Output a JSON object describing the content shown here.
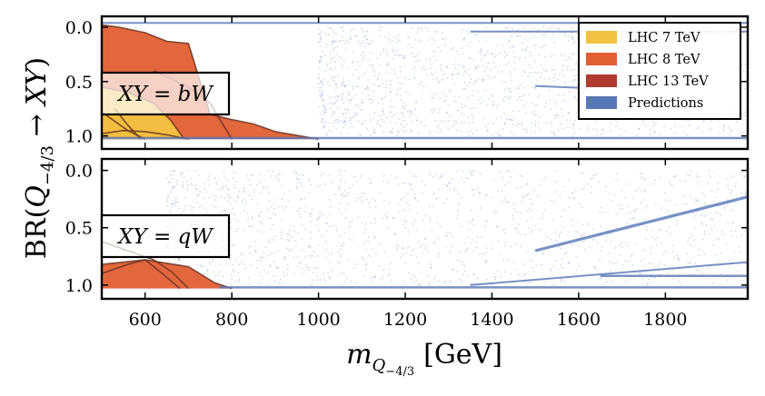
{
  "chart_data": {
    "type": "scatter",
    "ylabel": "BR(Q−₄⁄₃ → XY)",
    "ylabel_parts": {
      "prefix": "BR(",
      "Q": "Q",
      "sub": "−4/3",
      "arrow": " → ",
      "xy": "XY",
      "suffix": ")"
    },
    "xlabel_parts": {
      "m": "m",
      "sub_Q": "Q",
      "sub_sub": "−4/3",
      "unit": "[GeV]"
    },
    "xlim": [
      500,
      1990
    ],
    "ylim": [
      1.12,
      -0.1
    ],
    "x_ticks": [
      {
        "value": 600,
        "label": "600"
      },
      {
        "value": 800,
        "label": "800"
      },
      {
        "value": 1000,
        "label": "1000"
      },
      {
        "value": 1200,
        "label": "1200"
      },
      {
        "value": 1400,
        "label": "1400"
      },
      {
        "value": 1600,
        "label": "1600"
      },
      {
        "value": 1800,
        "label": "1800"
      }
    ],
    "y_ticks": [
      {
        "value": 0.0,
        "label": "0.0"
      },
      {
        "value": 0.5,
        "label": "0.5"
      },
      {
        "value": 1.0,
        "label": "1.0"
      }
    ],
    "legend": {
      "position": "top-right",
      "entries": [
        {
          "name": "LHC 7 TeV",
          "color": "#f2c240"
        },
        {
          "name": "LHC 8 TeV",
          "color": "#e15f33"
        },
        {
          "name": "LHC 13 TeV",
          "color": "#ae3b2e"
        },
        {
          "name": "Predictions",
          "color": "#5676b6"
        }
      ]
    },
    "panels": [
      {
        "label": "XY = bW",
        "label_parts": {
          "lhs": "XY",
          "eq": " = ",
          "rhs": "bW"
        },
        "exclusions": [
          {
            "name": "LHC 8 TeV",
            "color": "#e15f33",
            "points": [
              [
                500,
                -0.02
              ],
              [
                540,
                0.0
              ],
              [
                600,
                0.05
              ],
              [
                650,
                0.13
              ],
              [
                700,
                0.15
              ],
              [
                750,
                0.8
              ],
              [
                800,
                0.85
              ],
              [
                850,
                0.89
              ],
              [
                900,
                0.96
              ],
              [
                1000,
                1.03
              ],
              [
                500,
                1.03
              ]
            ]
          },
          {
            "name": "LHC 7 TeV",
            "color": "#f2c240",
            "points": [
              [
                500,
                0.55
              ],
              [
                560,
                0.6
              ],
              [
                620,
                0.7
              ],
              [
                660,
                0.86
              ],
              [
                690,
                1.03
              ],
              [
                500,
                1.03
              ]
            ]
          }
        ],
        "contour_lines": [
          [
            [
              500,
              -0.02
            ],
            [
              540,
              0.0
            ],
            [
              600,
              0.05
            ],
            [
              650,
              0.13
            ],
            [
              700,
              0.15
            ],
            [
              750,
              0.8
            ],
            [
              800,
              0.85
            ],
            [
              850,
              0.89
            ],
            [
              900,
              0.96
            ],
            [
              1000,
              1.03
            ]
          ],
          [
            [
              500,
              0.55
            ],
            [
              560,
              0.6
            ],
            [
              620,
              0.7
            ],
            [
              660,
              0.86
            ],
            [
              690,
              1.03
            ]
          ],
          [
            [
              500,
              0.98
            ],
            [
              550,
              0.95
            ],
            [
              600,
              0.96
            ],
            [
              650,
              0.99
            ],
            [
              700,
              1.03
            ]
          ],
          [
            [
              530,
              0.75
            ],
            [
              560,
              0.9
            ],
            [
              590,
              1.03
            ]
          ],
          [
            [
              500,
              0.78
            ],
            [
              560,
              0.95
            ],
            [
              600,
              1.03
            ]
          ],
          [
            [
              620,
              0.4
            ],
            [
              700,
              0.55
            ],
            [
              750,
              0.7
            ],
            [
              800,
              1.03
            ]
          ]
        ],
        "prediction_bands": [
          {
            "x": [
              500,
              1990
            ],
            "y": [
              1.02,
              1.02
            ],
            "width": 0.02
          },
          {
            "x": [
              500,
              1990
            ],
            "y": [
              -0.04,
              -0.04
            ],
            "width": 0.012
          },
          {
            "x": [
              1350,
              1990
            ],
            "y": [
              0.04,
              0.04
            ],
            "width": 0.015
          },
          {
            "x": [
              1500,
              1620
            ],
            "y": [
              0.54,
              0.56
            ],
            "width": 0.01
          }
        ],
        "scatter_region": {
          "x": [
            1000,
            1990
          ],
          "y": [
            0.0,
            1.0
          ]
        }
      },
      {
        "label": "XY = qW",
        "label_parts": {
          "lhs": "XY",
          "eq": " = ",
          "rhs": "qW"
        },
        "exclusions": [
          {
            "name": "LHC 8 TeV",
            "color": "#e15f33",
            "points": [
              [
                500,
                0.82
              ],
              [
                600,
                0.78
              ],
              [
                700,
                0.84
              ],
              [
                760,
                0.98
              ],
              [
                800,
                1.03
              ],
              [
                500,
                1.03
              ]
            ]
          }
        ],
        "contour_lines": [
          [
            [
              500,
              0.82
            ],
            [
              600,
              0.78
            ],
            [
              700,
              0.84
            ],
            [
              760,
              0.98
            ],
            [
              800,
              1.03
            ]
          ],
          [
            [
              500,
              0.62
            ],
            [
              560,
              0.7
            ],
            [
              620,
              0.78
            ],
            [
              660,
              0.88
            ],
            [
              700,
              1.03
            ]
          ],
          [
            [
              600,
              0.78
            ],
            [
              640,
              0.9
            ],
            [
              680,
              1.03
            ]
          ],
          [
            [
              500,
              0.9
            ],
            [
              560,
              0.82
            ],
            [
              600,
              0.78
            ]
          ]
        ],
        "prediction_bands": [
          {
            "x": [
              770,
              1990
            ],
            "y": [
              1.02,
              1.02
            ],
            "width": 0.02
          },
          {
            "x": [
              1500,
              1990
            ],
            "y": [
              0.7,
              0.23
            ],
            "width": 0.025
          },
          {
            "x": [
              1650,
              1990
            ],
            "y": [
              0.92,
              0.92
            ],
            "width": 0.02
          },
          {
            "x": [
              1350,
              1990
            ],
            "y": [
              1.0,
              0.8
            ],
            "width": 0.015
          }
        ],
        "scatter_region": {
          "x": [
            650,
            1990
          ],
          "y": [
            0.0,
            1.0
          ]
        }
      }
    ]
  }
}
